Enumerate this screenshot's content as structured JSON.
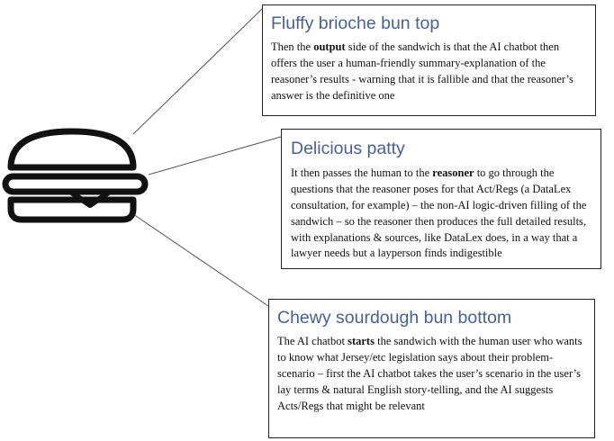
{
  "callouts": [
    {
      "id": "top",
      "title": "Fluffy brioche bun top",
      "body_parts": [
        {
          "text": "Then the ",
          "bold": false
        },
        {
          "text": "output",
          "bold": true
        },
        {
          "text": " side of the sandwich is that the AI chatbot then offers the user a human-friendly summary-explanation of the reasoner’s results - warning that it is fallible and that the reasoner’s answer is the definitive one",
          "bold": false
        }
      ]
    },
    {
      "id": "mid",
      "title": "Delicious patty",
      "body_parts": [
        {
          "text": "It then passes the human to the ",
          "bold": false
        },
        {
          "text": "reasoner",
          "bold": true
        },
        {
          "text": " to go through the questions that the reasoner poses for that Act/Regs (a DataLex consultation, for example) – the non-AI logic-driven filling of the sandwich – so the reasoner then produces the full detailed results, with explanations & sources, like DataLex does, in a way that a lawyer needs but a layperson finds indigestible",
          "bold": false
        }
      ]
    },
    {
      "id": "bot",
      "title": "Chewy sourdough bun bottom",
      "body_parts": [
        {
          "text": "The AI chatbot ",
          "bold": false
        },
        {
          "text": "starts",
          "bold": true
        },
        {
          "text": " the sandwich with the human user who wants to know what Jersey/etc legislation says about their problem-scenario – first the AI chatbot takes the user’s scenario in the user’s lay terms & natural English story-telling, and the AI suggests Acts/Regs that might be relevant",
          "bold": false
        }
      ]
    }
  ],
  "icon": "burger-icon",
  "colors": {
    "title": "#4a6290",
    "text": "#111111",
    "border": "#222222",
    "connector": "#555555"
  }
}
